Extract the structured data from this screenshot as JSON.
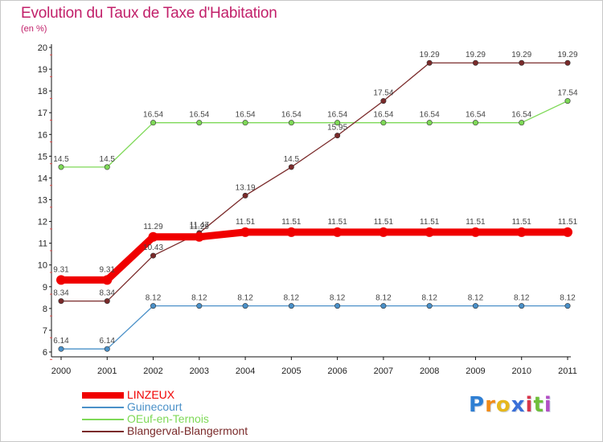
{
  "title": "Evolution du Taux de Taxe d'Habitation",
  "unit": "(en %)",
  "logo": {
    "letters": [
      "P",
      "r",
      "o",
      "x",
      "i",
      "t",
      "i"
    ],
    "colors": [
      "#2f7fd3",
      "#f28c18",
      "#e6b81d",
      "#3a6fd8",
      "#d8364a",
      "#6fbf3a",
      "#b34fc5"
    ]
  },
  "chart_data": {
    "type": "line",
    "title": "Evolution du Taux de Taxe d'Habitation",
    "ylabel": "(en %)",
    "xlabel": "",
    "x": [
      "2000",
      "2001",
      "2002",
      "2003",
      "2004",
      "2005",
      "2006",
      "2007",
      "2008",
      "2009",
      "2010",
      "2011"
    ],
    "ylim": [
      6,
      20
    ],
    "yticks": [
      "6",
      "7",
      "8",
      "9",
      "10",
      "11",
      "12",
      "13",
      "14",
      "15",
      "16",
      "17",
      "18",
      "19",
      "20"
    ],
    "grid": false,
    "legend_position": "bottom-left",
    "series": [
      {
        "name": "LINZEUX",
        "color": "#f00000",
        "values": [
          9.31,
          9.31,
          11.29,
          11.29,
          11.51,
          11.51,
          11.51,
          11.51,
          11.51,
          11.51,
          11.51,
          11.51
        ],
        "labels": [
          "9.31",
          "9.31",
          "11.29",
          "11.29",
          "11.51",
          "11.51",
          "11.51",
          "11.51",
          "11.51",
          "11.51",
          "11.51",
          "11.51"
        ]
      },
      {
        "name": "Guinecourt",
        "color": "#4a90c8",
        "values": [
          6.14,
          6.14,
          8.12,
          8.12,
          8.12,
          8.12,
          8.12,
          8.12,
          8.12,
          8.12,
          8.12,
          8.12
        ],
        "labels": [
          "6.14",
          "6.14",
          "8.12",
          "8.12",
          "8.12",
          "8.12",
          "8.12",
          "8.12",
          "8.12",
          "8.12",
          "8.12",
          "8.12"
        ]
      },
      {
        "name": "OEuf-en-Ternois",
        "color": "#7ed957",
        "values": [
          14.5,
          14.5,
          16.54,
          16.54,
          16.54,
          16.54,
          16.54,
          16.54,
          16.54,
          16.54,
          16.54,
          17.54
        ],
        "labels": [
          "14.5",
          "14.5",
          "16.54",
          "16.54",
          "16.54",
          "16.54",
          "16.54",
          "16.54",
          "16.54",
          "16.54",
          "16.54",
          "17.54"
        ]
      },
      {
        "name": "Blangerval-Blangermont",
        "color": "#7a2a2a",
        "values": [
          8.34,
          8.34,
          10.43,
          11.47,
          13.19,
          14.5,
          15.95,
          17.54,
          19.29,
          19.29,
          19.29,
          19.29
        ],
        "labels": [
          "8.34",
          "8.34",
          "10.43",
          "11.47",
          "13.19",
          "14.5",
          "15.95",
          "17.54",
          "19.29",
          "19.29",
          "19.29",
          "19.29"
        ]
      }
    ]
  }
}
